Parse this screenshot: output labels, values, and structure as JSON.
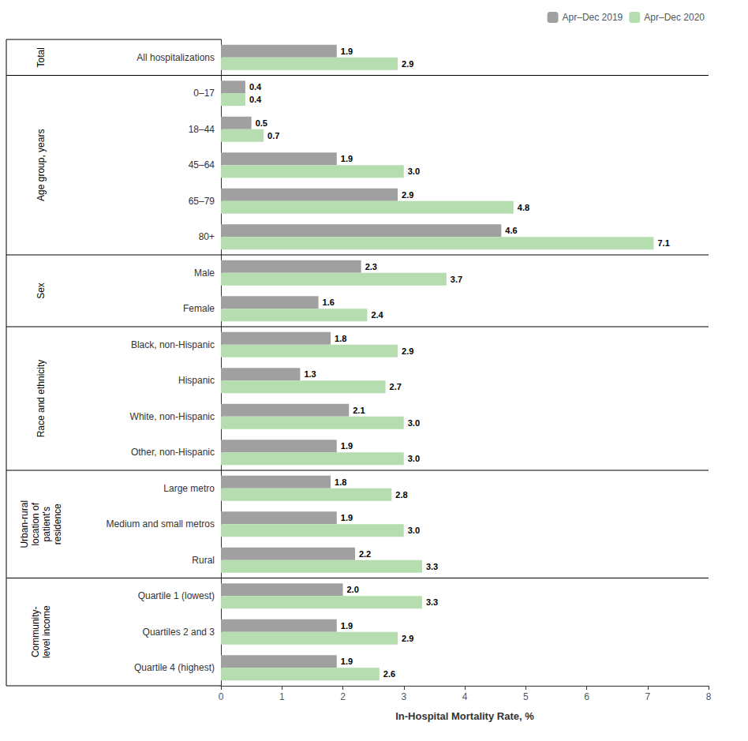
{
  "chart_data": {
    "type": "bar",
    "orientation": "horizontal",
    "categories": [
      "All hospitalizations",
      "0–17",
      "18–44",
      "45–64",
      "65–79",
      "80+",
      "Male",
      "Female",
      "Black, non-Hispanic",
      "Hispanic",
      "White, non-Hispanic",
      "Other, non-Hispanic",
      "Large metro",
      "Medium and small metros",
      "Rural",
      "Quartile 1 (lowest)",
      "Quartiles 2 and 3",
      "Quartile 4 (highest)"
    ],
    "series": [
      {
        "name": "Apr–Dec 2019",
        "color": "#a0a0a0",
        "values": [
          1.9,
          0.4,
          0.5,
          1.9,
          2.9,
          4.6,
          2.3,
          1.6,
          1.8,
          1.3,
          2.1,
          1.9,
          1.8,
          1.9,
          2.2,
          2.0,
          1.9,
          1.9
        ],
        "value_labels": [
          "1.9",
          "0.4",
          "0.5",
          "1.9",
          "2.9",
          "4.6",
          "2.3",
          "1.6",
          "1.8",
          "1.3",
          "2.1",
          "1.9",
          "1.8",
          "1.9",
          "2.2",
          "2.0",
          "1.9",
          "1.9"
        ]
      },
      {
        "name": "Apr–Dec 2020",
        "color": "#b5ddb0",
        "values": [
          2.9,
          0.4,
          0.7,
          3.0,
          4.8,
          7.1,
          3.7,
          2.4,
          2.9,
          2.7,
          3.0,
          3.0,
          2.8,
          3.0,
          3.3,
          3.3,
          2.9,
          2.6
        ],
        "value_labels": [
          "2.9",
          "0.4",
          "0.7",
          "3.0",
          "4.8",
          "7.1",
          "3.7",
          "2.4",
          "2.9",
          "2.7",
          "3.0",
          "3.0",
          "2.8",
          "3.0",
          "3.3",
          "3.3",
          "2.9",
          "2.6"
        ]
      }
    ],
    "groups": [
      {
        "label": "Total",
        "count": 1
      },
      {
        "label": "Age group, years",
        "count": 5
      },
      {
        "label": "Sex",
        "count": 2
      },
      {
        "label": "Race and ethnicity",
        "count": 4
      },
      {
        "label": "Urban-rural\nlocation of\npatient's\nresidence",
        "count": 3
      },
      {
        "label": "Community-\nlevel income",
        "count": 3
      }
    ],
    "xlabel": "In-Hospital Mortality Rate, %",
    "xlim": [
      0,
      8
    ],
    "xticks": [
      0,
      1,
      2,
      3,
      4,
      5,
      6,
      7,
      8
    ],
    "data_labels": true,
    "legend": "upper right",
    "grid": false
  }
}
